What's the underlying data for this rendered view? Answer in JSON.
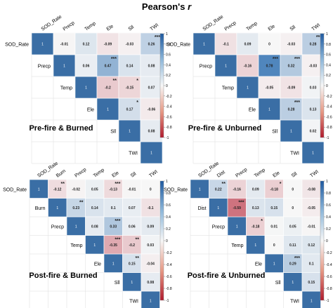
{
  "title": "Pearson's",
  "title_symbol": "r",
  "colorbar_ticks": [
    "1",
    "0.8",
    "0.6",
    "0.4",
    "0.2",
    "0",
    "-0.2",
    "-0.4",
    "-0.6",
    "-0.8",
    "-1"
  ],
  "colors": {
    "positive": "#2166ac",
    "negative": "#b2182b",
    "neutral": "#f7f7f7",
    "diagonal": "#3a6ea5"
  },
  "chart_data": [
    {
      "type": "heatmap",
      "title": "Pre-fire & Burned",
      "variables": [
        "SOD_Rate",
        "Precp",
        "Temp",
        "Ele",
        "Sll",
        "TWI"
      ],
      "cells": [
        {
          "row": 0,
          "col": 1,
          "r": -0.01,
          "label": "-0.01",
          "stars": ""
        },
        {
          "row": 0,
          "col": 2,
          "r": 0.12,
          "label": "0.12",
          "stars": ""
        },
        {
          "row": 0,
          "col": 3,
          "r": -0.09,
          "label": "-0.09",
          "stars": ""
        },
        {
          "row": 0,
          "col": 4,
          "r": -0.03,
          "label": "-0.03",
          "stars": ""
        },
        {
          "row": 0,
          "col": 5,
          "r": 0.26,
          "label": "0.26",
          "stars": "***"
        },
        {
          "row": 1,
          "col": 2,
          "r": 0.06,
          "label": "0.06",
          "stars": ""
        },
        {
          "row": 1,
          "col": 3,
          "r": 0.47,
          "label": "0.47",
          "stars": "***"
        },
        {
          "row": 1,
          "col": 4,
          "r": 0.14,
          "label": "0.14",
          "stars": ""
        },
        {
          "row": 1,
          "col": 5,
          "r": 0.08,
          "label": "0.08",
          "stars": ""
        },
        {
          "row": 2,
          "col": 3,
          "r": -0.2,
          "label": "-0.2",
          "stars": "**"
        },
        {
          "row": 2,
          "col": 4,
          "r": -0.15,
          "label": "-0.15",
          "stars": "*"
        },
        {
          "row": 2,
          "col": 5,
          "r": 0.07,
          "label": "0.07",
          "stars": ""
        },
        {
          "row": 3,
          "col": 4,
          "r": 0.17,
          "label": "0.17",
          "stars": "*"
        },
        {
          "row": 3,
          "col": 5,
          "r": -0.06,
          "label": "-0.06",
          "stars": ""
        },
        {
          "row": 4,
          "col": 5,
          "r": 0.08,
          "label": "0.08",
          "stars": ""
        }
      ]
    },
    {
      "type": "heatmap",
      "title": "Pre-fire & Unburned",
      "variables": [
        "SOD_Rate",
        "Precp",
        "Temp",
        "Ele",
        "Sll",
        "TWI"
      ],
      "cells": [
        {
          "row": 0,
          "col": 1,
          "r": -0.1,
          "label": "-0.1",
          "stars": ""
        },
        {
          "row": 0,
          "col": 2,
          "r": 0.09,
          "label": "0.09",
          "stars": ""
        },
        {
          "row": 0,
          "col": 3,
          "r": 0,
          "label": "0",
          "stars": ""
        },
        {
          "row": 0,
          "col": 4,
          "r": -0.03,
          "label": "-0.03",
          "stars": ""
        },
        {
          "row": 0,
          "col": 5,
          "r": 0.28,
          "label": "0.28",
          "stars": "***"
        },
        {
          "row": 1,
          "col": 2,
          "r": -0.16,
          "label": "-0.16",
          "stars": ""
        },
        {
          "row": 1,
          "col": 3,
          "r": 0.78,
          "label": "0.78",
          "stars": "***"
        },
        {
          "row": 1,
          "col": 4,
          "r": 0.32,
          "label": "0.32",
          "stars": "***"
        },
        {
          "row": 1,
          "col": 5,
          "r": -0.03,
          "label": "-0.03",
          "stars": ""
        },
        {
          "row": 2,
          "col": 3,
          "r": -0.05,
          "label": "-0.05",
          "stars": ""
        },
        {
          "row": 2,
          "col": 4,
          "r": -0.09,
          "label": "-0.09",
          "stars": ""
        },
        {
          "row": 2,
          "col": 5,
          "r": 0.03,
          "label": "0.03",
          "stars": ""
        },
        {
          "row": 3,
          "col": 4,
          "r": 0.28,
          "label": "0.28",
          "stars": "***"
        },
        {
          "row": 3,
          "col": 5,
          "r": 0.13,
          "label": "0.13",
          "stars": ""
        },
        {
          "row": 4,
          "col": 5,
          "r": 0.02,
          "label": "0.02",
          "stars": ""
        }
      ]
    },
    {
      "type": "heatmap",
      "title": "Post-fire & Burned",
      "variables": [
        "SOD_Rate",
        "Burn",
        "Precp",
        "Temp",
        "Ele",
        "Sll",
        "TWI"
      ],
      "cells": [
        {
          "row": 0,
          "col": 1,
          "r": -0.12,
          "label": "-0.12",
          "stars": "**"
        },
        {
          "row": 0,
          "col": 2,
          "r": -0.02,
          "label": "-0.02",
          "stars": ""
        },
        {
          "row": 0,
          "col": 3,
          "r": 0.05,
          "label": "0.05",
          "stars": ""
        },
        {
          "row": 0,
          "col": 4,
          "r": -0.13,
          "label": "-0.13",
          "stars": "***"
        },
        {
          "row": 0,
          "col": 5,
          "r": -0.01,
          "label": "-0.01",
          "stars": ""
        },
        {
          "row": 0,
          "col": 6,
          "r": 0,
          "label": "0",
          "stars": ""
        },
        {
          "row": 1,
          "col": 2,
          "r": 0.23,
          "label": "0.23",
          "stars": "**"
        },
        {
          "row": 1,
          "col": 3,
          "r": 0.14,
          "label": "0.14",
          "stars": ""
        },
        {
          "row": 1,
          "col": 4,
          "r": 0.1,
          "label": "0.1",
          "stars": ""
        },
        {
          "row": 1,
          "col": 5,
          "r": 0.07,
          "label": "0.07",
          "stars": ""
        },
        {
          "row": 1,
          "col": 6,
          "r": -0.1,
          "label": "-0.1",
          "stars": ""
        },
        {
          "row": 2,
          "col": 3,
          "r": 0.08,
          "label": "0.08",
          "stars": ""
        },
        {
          "row": 2,
          "col": 4,
          "r": 0.33,
          "label": "0.33",
          "stars": "***"
        },
        {
          "row": 2,
          "col": 5,
          "r": 0.06,
          "label": "0.06",
          "stars": ""
        },
        {
          "row": 2,
          "col": 6,
          "r": 0.09,
          "label": "0.09",
          "stars": ""
        },
        {
          "row": 3,
          "col": 4,
          "r": -0.35,
          "label": "-0.35",
          "stars": "***"
        },
        {
          "row": 3,
          "col": 5,
          "r": -0.2,
          "label": "-0.2",
          "stars": "**"
        },
        {
          "row": 3,
          "col": 6,
          "r": 0.03,
          "label": "0.03",
          "stars": ""
        },
        {
          "row": 4,
          "col": 5,
          "r": 0.15,
          "label": "0.15",
          "stars": "**"
        },
        {
          "row": 4,
          "col": 6,
          "r": -0.04,
          "label": "-0.04",
          "stars": ""
        },
        {
          "row": 5,
          "col": 6,
          "r": 0.08,
          "label": "0.08",
          "stars": ""
        }
      ]
    },
    {
      "type": "heatmap",
      "title": "Post-fire & Unburned",
      "variables": [
        "SOD_Rate",
        "Dist",
        "Precp",
        "Temp",
        "Ele",
        "Sll",
        "TWI"
      ],
      "cells": [
        {
          "row": 0,
          "col": 1,
          "r": 0.22,
          "label": "0.22",
          "stars": "**"
        },
        {
          "row": 0,
          "col": 2,
          "r": -0.16,
          "label": "-0.16",
          "stars": ""
        },
        {
          "row": 0,
          "col": 3,
          "r": 0.09,
          "label": "0.09",
          "stars": ""
        },
        {
          "row": 0,
          "col": 4,
          "r": -0.18,
          "label": "-0.18",
          "stars": "*"
        },
        {
          "row": 0,
          "col": 5,
          "r": 0,
          "label": "0",
          "stars": ""
        },
        {
          "row": 0,
          "col": 6,
          "r": -0.08,
          "label": "-0.08",
          "stars": ""
        },
        {
          "row": 1,
          "col": 2,
          "r": -0.59,
          "label": "-0.59",
          "stars": "***"
        },
        {
          "row": 1,
          "col": 3,
          "r": 0.13,
          "label": "0.13",
          "stars": ""
        },
        {
          "row": 1,
          "col": 4,
          "r": 0.15,
          "label": "0.15",
          "stars": ""
        },
        {
          "row": 1,
          "col": 5,
          "r": 0,
          "label": "0",
          "stars": ""
        },
        {
          "row": 1,
          "col": 6,
          "r": -0.05,
          "label": "-0.05",
          "stars": ""
        },
        {
          "row": 2,
          "col": 3,
          "r": -0.18,
          "label": "-0.18",
          "stars": "*"
        },
        {
          "row": 2,
          "col": 4,
          "r": 0.01,
          "label": "0.01",
          "stars": ""
        },
        {
          "row": 2,
          "col": 5,
          "r": 0.05,
          "label": "0.05",
          "stars": ""
        },
        {
          "row": 2,
          "col": 6,
          "r": -0.01,
          "label": "-0.01",
          "stars": ""
        },
        {
          "row": 3,
          "col": 4,
          "r": 0,
          "label": "0",
          "stars": ""
        },
        {
          "row": 3,
          "col": 5,
          "r": 0.11,
          "label": "0.11",
          "stars": ""
        },
        {
          "row": 3,
          "col": 6,
          "r": 0.12,
          "label": "0.12",
          "stars": ""
        },
        {
          "row": 4,
          "col": 5,
          "r": 0.29,
          "label": "0.29",
          "stars": "***"
        },
        {
          "row": 4,
          "col": 6,
          "r": 0.1,
          "label": "0.1",
          "stars": ""
        },
        {
          "row": 5,
          "col": 6,
          "r": 0.15,
          "label": "0.15",
          "stars": ""
        }
      ]
    }
  ]
}
